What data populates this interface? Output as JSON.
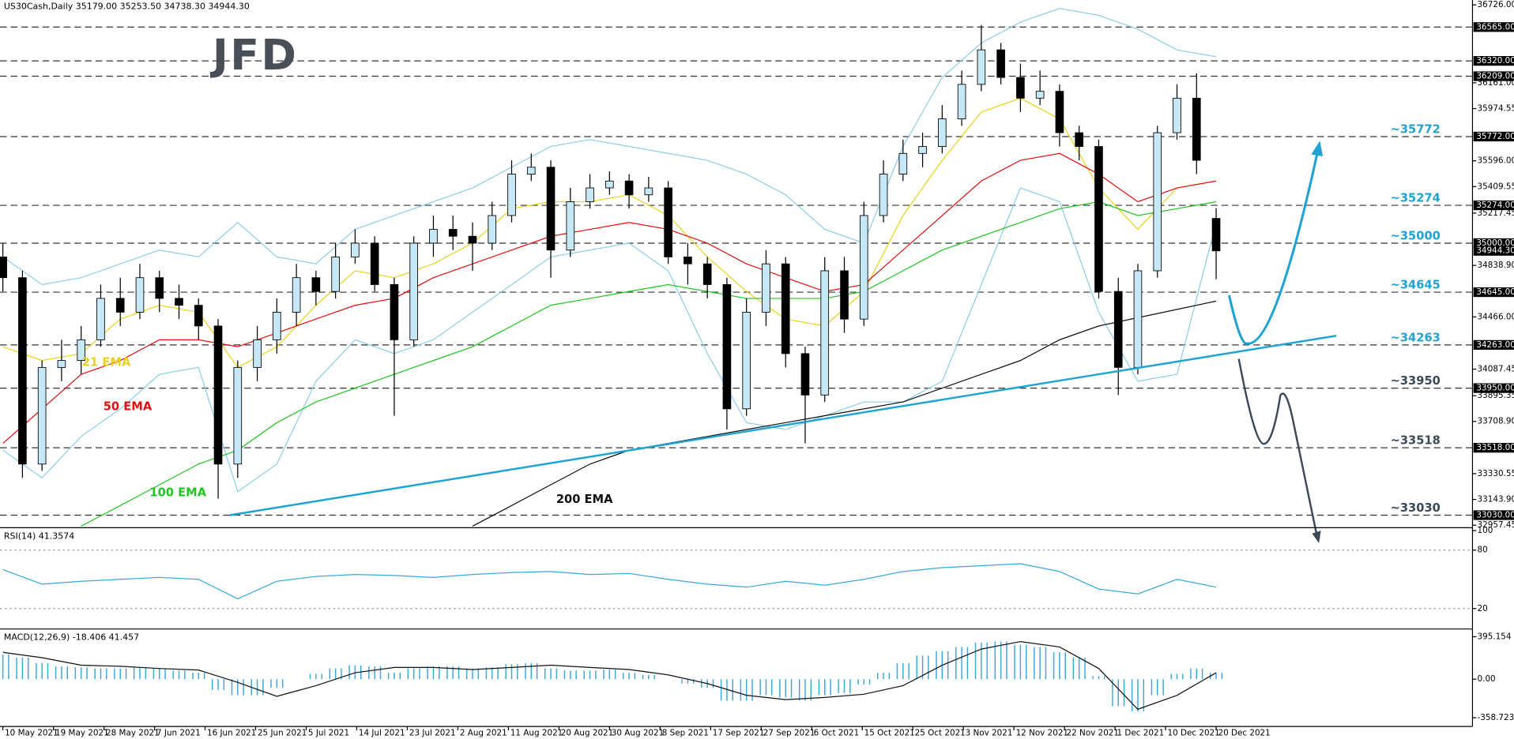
{
  "chart_data": {
    "type": "candlestick",
    "title": "US30Cash,Daily 35179.00 35253.50 34738.30 34944.30",
    "logo": "JFD",
    "xlim": [
      -0.44,
      225.3
    ],
    "xticks": [
      {
        "value": 0,
        "label": "10 May 2021"
      },
      {
        "value": 7.75,
        "label": "19 May 2021"
      },
      {
        "value": 15.5,
        "label": "28 May 2021"
      },
      {
        "value": 23.25,
        "label": "7 Jun 2021"
      },
      {
        "value": 31,
        "label": "16 Jun 2021"
      },
      {
        "value": 38.75,
        "label": "25 Jun 2021"
      },
      {
        "value": 46.5,
        "label": "5 Jul 2021"
      },
      {
        "value": 54.25,
        "label": "14 Jul 2021"
      },
      {
        "value": 62,
        "label": "23 Jul 2021"
      },
      {
        "value": 69.75,
        "label": "2 Aug 2021"
      },
      {
        "value": 77.5,
        "label": "11 Aug 2021"
      },
      {
        "value": 85.25,
        "label": "20 Aug 2021"
      },
      {
        "value": 93,
        "label": "30 Aug 2021"
      },
      {
        "value": 100.75,
        "label": "8 Sep 2021"
      },
      {
        "value": 108.5,
        "label": "17 Sep 2021"
      },
      {
        "value": 116.25,
        "label": "27 Sep 2021"
      },
      {
        "value": 124,
        "label": "6 Oct 2021"
      },
      {
        "value": 131.75,
        "label": "15 Oct 2021"
      },
      {
        "value": 139.5,
        "label": "25 Oct 2021"
      },
      {
        "value": 147.25,
        "label": "3 Nov 2021"
      },
      {
        "value": 155,
        "label": "12 Nov 2021"
      },
      {
        "value": 162.75,
        "label": "22 Nov 2021"
      },
      {
        "value": 170.5,
        "label": "1 Dec 2021"
      },
      {
        "value": 178.25,
        "label": "10 Dec 2021"
      },
      {
        "value": 186,
        "label": "20 Dec 2021"
      }
    ],
    "ylim": [
      32946,
      36761
    ],
    "yticks": [
      {
        "value": 36726,
        "label": "36726.00"
      },
      {
        "value": 36161,
        "label": "36161.00"
      },
      {
        "value": 35974.55,
        "label": "35974.55"
      },
      {
        "value": 35596,
        "label": "35596.00"
      },
      {
        "value": 35409.55,
        "label": "35409.55"
      },
      {
        "value": 35217.45,
        "label": "35217.45"
      },
      {
        "value": 34838.9,
        "label": "34838.90"
      },
      {
        "value": 34466,
        "label": "34466.00"
      },
      {
        "value": 34087.45,
        "label": "34087.45"
      },
      {
        "value": 33895.35,
        "label": "33895.35"
      },
      {
        "value": 33708.9,
        "label": "33708.90"
      },
      {
        "value": 33330.55,
        "label": "33330.55"
      },
      {
        "value": 33143.9,
        "label": "33143.90"
      },
      {
        "value": 32957.45,
        "label": "32957.45"
      }
    ],
    "up_color": "#c6e8f6",
    "down_color": "#000000",
    "candle_x": [
      0,
      3,
      6,
      9,
      12,
      15,
      18,
      21,
      24,
      27,
      30,
      33,
      36,
      39,
      42,
      45,
      48,
      51,
      54,
      57,
      60,
      63,
      66,
      69,
      72,
      75,
      78,
      81,
      84,
      87,
      90,
      93,
      96,
      99,
      102,
      105,
      108,
      111,
      114,
      117,
      120,
      123,
      126,
      129,
      132,
      135,
      138,
      141,
      144,
      147,
      150,
      153,
      156,
      159,
      162,
      165,
      168,
      171,
      174,
      177,
      180,
      183,
      186
    ],
    "ohlc": [
      [
        34900,
        35000,
        34650,
        34750
      ],
      [
        34750,
        34800,
        33300,
        33400
      ],
      [
        33400,
        34150,
        33350,
        34100
      ],
      [
        34100,
        34300,
        34000,
        34150
      ],
      [
        34150,
        34400,
        34050,
        34300
      ],
      [
        34300,
        34700,
        34250,
        34600
      ],
      [
        34600,
        34750,
        34400,
        34500
      ],
      [
        34500,
        34850,
        34450,
        34750
      ],
      [
        34750,
        34800,
        34500,
        34600
      ],
      [
        34600,
        34700,
        34450,
        34550
      ],
      [
        34550,
        34600,
        34300,
        34400
      ],
      [
        34400,
        34450,
        33150,
        33400
      ],
      [
        33400,
        34150,
        33300,
        34100
      ],
      [
        34100,
        34400,
        34000,
        34300
      ],
      [
        34300,
        34600,
        34200,
        34500
      ],
      [
        34500,
        34850,
        34400,
        34750
      ],
      [
        34750,
        34800,
        34550,
        34650
      ],
      [
        34650,
        35000,
        34600,
        34900
      ],
      [
        34900,
        35100,
        34850,
        35000
      ],
      [
        35000,
        35050,
        34650,
        34700
      ],
      [
        34700,
        34750,
        33750,
        34300
      ],
      [
        34300,
        35050,
        34250,
        35000
      ],
      [
        35000,
        35200,
        34900,
        35100
      ],
      [
        35100,
        35200,
        34950,
        35050
      ],
      [
        35050,
        35150,
        34800,
        35000
      ],
      [
        35000,
        35300,
        34950,
        35200
      ],
      [
        35200,
        35600,
        35150,
        35500
      ],
      [
        35500,
        35650,
        35450,
        35550
      ],
      [
        35550,
        35600,
        34750,
        34950
      ],
      [
        34950,
        35400,
        34900,
        35300
      ],
      [
        35300,
        35500,
        35250,
        35400
      ],
      [
        35400,
        35520,
        35350,
        35450
      ],
      [
        35450,
        35500,
        35250,
        35350
      ],
      [
        35350,
        35480,
        35300,
        35400
      ],
      [
        35400,
        35450,
        34850,
        34900
      ],
      [
        34900,
        35000,
        34700,
        34850
      ],
      [
        34850,
        34900,
        34600,
        34700
      ],
      [
        34700,
        34750,
        33650,
        33800
      ],
      [
        33800,
        34600,
        33750,
        34500
      ],
      [
        34500,
        34950,
        34400,
        34850
      ],
      [
        34850,
        34900,
        34100,
        34200
      ],
      [
        34200,
        34250,
        33550,
        33900
      ],
      [
        33900,
        34900,
        33850,
        34800
      ],
      [
        34800,
        34900,
        34350,
        34450
      ],
      [
        34450,
        35300,
        34400,
        35200
      ],
      [
        35200,
        35600,
        35150,
        35500
      ],
      [
        35500,
        35750,
        35450,
        35650
      ],
      [
        35650,
        35800,
        35550,
        35700
      ],
      [
        35700,
        36000,
        35650,
        35900
      ],
      [
        35900,
        36250,
        35850,
        36150
      ],
      [
        36150,
        36580,
        36100,
        36400
      ],
      [
        36400,
        36450,
        36150,
        36200
      ],
      [
        36200,
        36300,
        35950,
        36050
      ],
      [
        36050,
        36250,
        36000,
        36100
      ],
      [
        36100,
        36150,
        35700,
        35800
      ],
      [
        35800,
        35850,
        35600,
        35700
      ],
      [
        35700,
        35750,
        34600,
        34650
      ],
      [
        34650,
        34750,
        33900,
        34100
      ],
      [
        34100,
        34850,
        34050,
        34800
      ],
      [
        34800,
        35850,
        34750,
        35800
      ],
      [
        35800,
        36150,
        35750,
        36050
      ],
      [
        36050,
        36230,
        35500,
        35600
      ],
      [
        35179,
        35253.5,
        34738.3,
        34944.3
      ]
    ],
    "ind_x": [
      0,
      6,
      12,
      18,
      24,
      30,
      36,
      42,
      48,
      54,
      60,
      66,
      72,
      78,
      84,
      90,
      96,
      102,
      108,
      114,
      120,
      126,
      132,
      138,
      144,
      150,
      156,
      162,
      168,
      174,
      180,
      186
    ],
    "series": [
      {
        "name": "21 EMA",
        "color": "#e8d21c",
        "values": [
          34250,
          34150,
          34200,
          34450,
          34550,
          34500,
          34100,
          34250,
          34550,
          34800,
          34750,
          34850,
          35000,
          35250,
          35300,
          35300,
          35350,
          35200,
          34900,
          34650,
          34450,
          34400,
          34650,
          35200,
          35600,
          35950,
          36050,
          35900,
          35400,
          35100,
          35400,
          35450
        ]
      },
      {
        "name": "50 EMA",
        "color": "#e01010",
        "values": [
          33550,
          33800,
          34050,
          34150,
          34300,
          34300,
          34250,
          34350,
          34450,
          34550,
          34600,
          34750,
          34850,
          34950,
          35050,
          35100,
          35150,
          35100,
          35000,
          34850,
          34750,
          34650,
          34700,
          34950,
          35200,
          35450,
          35600,
          35650,
          35500,
          35300,
          35400,
          35450
        ]
      },
      {
        "name": "100 EMA",
        "color": "#22c422",
        "values": [
          null,
          null,
          32950,
          33100,
          33250,
          33400,
          33500,
          33700,
          33850,
          33950,
          34050,
          34150,
          34250,
          34400,
          34550,
          34600,
          34650,
          34700,
          34650,
          34600,
          34600,
          34600,
          34650,
          34800,
          34950,
          35050,
          35150,
          35250,
          35300,
          35200,
          35250,
          35300
        ]
      },
      {
        "name": "200 EMA",
        "color": "#111111",
        "values": [
          null,
          null,
          null,
          null,
          null,
          null,
          null,
          null,
          null,
          null,
          null,
          null,
          32950,
          33100,
          33250,
          33400,
          33500,
          33550,
          33600,
          33650,
          33700,
          33750,
          33800,
          33850,
          33950,
          34050,
          34150,
          34300,
          34400,
          34460,
          34520,
          34580
        ]
      }
    ],
    "bollinger": {
      "color": "#8ccde8",
      "upper": [
        34900,
        34700,
        34750,
        34850,
        34950,
        34900,
        35150,
        34900,
        34850,
        35100,
        35200,
        35300,
        35400,
        35550,
        35700,
        35750,
        35700,
        35650,
        35600,
        35500,
        35350,
        35100,
        35000,
        35700,
        36200,
        36450,
        36600,
        36700,
        36650,
        36550,
        36400,
        36350
      ],
      "lower": [
        33500,
        33300,
        33600,
        33800,
        34050,
        34100,
        33200,
        33400,
        34000,
        34300,
        34200,
        34300,
        34500,
        34700,
        34900,
        34950,
        35000,
        34800,
        34200,
        33700,
        33650,
        33750,
        33850,
        33850,
        34000,
        34700,
        35400,
        35300,
        34500,
        34000,
        34050,
        35150
      ]
    },
    "levels": [
      {
        "value": 36565,
        "label": "36565.00"
      },
      {
        "value": 36320,
        "label": "36320.00"
      },
      {
        "value": 36209,
        "label": "36209.00"
      },
      {
        "value": 35772,
        "label": "35772.00",
        "note": "~35772",
        "note_color": "#1ea3d2"
      },
      {
        "value": 35274,
        "label": "35274.00",
        "note": "~35274",
        "note_color": "#1ea3d2"
      },
      {
        "value": 35000,
        "label": "35000.00",
        "note": "~35000",
        "note_color": "#1ea3d2"
      },
      {
        "value": 34645,
        "label": "34645.00",
        "note": "~34645",
        "note_color": "#1ea3d2"
      },
      {
        "value": 34263,
        "label": "34263.00",
        "note": "~34263",
        "note_color": "#1ea3d2"
      },
      {
        "value": 33950,
        "label": "33950.00",
        "note": "~33950",
        "note_color": "#3b4a58"
      },
      {
        "value": 33518,
        "label": "33518.00",
        "note": "~33518",
        "note_color": "#3b4a58"
      },
      {
        "value": 33030,
        "label": "33030.00",
        "note": "~33030",
        "note_color": "#3b4a58"
      }
    ],
    "current_price": {
      "value": 34944.3,
      "label": "34944.30"
    },
    "rsi": {
      "title": "RSI(14) 41.3574",
      "ylim": [
        0,
        100
      ],
      "yticks": [
        100,
        80,
        20
      ],
      "color": "#3aa8d8",
      "values": [
        60,
        45,
        48,
        50,
        52,
        50,
        30,
        48,
        53,
        55,
        54,
        52,
        55,
        57,
        58,
        55,
        56,
        50,
        45,
        42,
        48,
        44,
        50,
        58,
        62,
        64,
        66,
        58,
        40,
        35,
        50,
        42
      ]
    },
    "macd": {
      "title": "MACD(12,26,9) -18.406 41.457",
      "ylim": [
        -431,
        458
      ],
      "yticks": [
        395.154,
        {
          "value": 0,
          "label": "0.00"
        },
        -358.723
      ],
      "hist_color": "#3aa8d8",
      "signal_color": "#111111",
      "histogram": [
        230,
        200,
        150,
        120,
        110,
        100,
        100,
        110,
        100,
        80,
        60,
        -100,
        -150,
        -150,
        -80,
        0,
        50,
        100,
        130,
        120,
        60,
        100,
        120,
        120,
        100,
        110,
        140,
        150,
        100,
        80,
        80,
        90,
        60,
        40,
        0,
        -40,
        -80,
        -200,
        -200,
        -150,
        -170,
        -200,
        -150,
        -130,
        -50,
        60,
        150,
        220,
        260,
        300,
        340,
        350,
        320,
        300,
        250,
        200,
        30,
        -250,
        -300,
        -150,
        50,
        100,
        60
      ],
      "signal": [
        250,
        200,
        130,
        120,
        100,
        85,
        -30,
        -160,
        -60,
        60,
        110,
        110,
        90,
        110,
        130,
        110,
        90,
        40,
        -40,
        -150,
        -190,
        -170,
        -140,
        -60,
        130,
        280,
        350,
        300,
        100,
        -280,
        -150,
        60
      ]
    }
  }
}
